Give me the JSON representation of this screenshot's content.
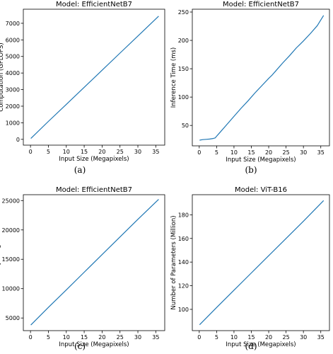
{
  "chart_data": [
    {
      "type": "line",
      "title": "Model: EfficientNetB7",
      "xlabel": "Input Size (Megapixels)",
      "ylabel": "Computation (GFLOPS)",
      "caption": "(a)",
      "xlim": [
        -2,
        37.5
      ],
      "ylim": [
        -350,
        7850
      ],
      "xticks": [
        0,
        5,
        10,
        15,
        20,
        25,
        30,
        35
      ],
      "yticks": [
        0,
        1000,
        2000,
        3000,
        4000,
        5000,
        6000,
        7000
      ],
      "grid": false,
      "series": [
        {
          "x": [
            0.1,
            5,
            10,
            15,
            20,
            25,
            30,
            35.8
          ],
          "y": [
            50,
            1080,
            2110,
            3140,
            4170,
            5200,
            6230,
            7430
          ]
        }
      ]
    },
    {
      "type": "line",
      "title": "Model: EfficientNetB7",
      "xlabel": "Input Size (Megapixels)",
      "ylabel": "Inference Time (ms)",
      "caption": "(b)",
      "xlim": [
        -2,
        37.5
      ],
      "ylim": [
        14,
        255
      ],
      "xticks": [
        0,
        5,
        10,
        15,
        20,
        25,
        30,
        35
      ],
      "yticks": [
        50,
        100,
        150,
        200,
        250
      ],
      "grid": false,
      "series": [
        {
          "x": [
            0.1,
            1,
            2,
            3,
            4,
            4.6,
            5,
            6,
            8,
            10,
            12,
            14,
            16,
            18,
            20,
            21,
            22,
            24,
            26,
            28,
            29,
            30,
            32,
            34,
            35.8
          ],
          "y": [
            24,
            25,
            25.5,
            26,
            27,
            28,
            31,
            38,
            52,
            66,
            80,
            93,
            107,
            120,
            133,
            139,
            146,
            160,
            173,
            187,
            193,
            199,
            212,
            226,
            244
          ]
        }
      ]
    },
    {
      "type": "line",
      "title": "Model: EfficientNetB7",
      "xlabel": "Input Size (Megapixels)",
      "ylabel": "GPU Memory Usage (MB)",
      "caption": "(c)",
      "xlim": [
        -2,
        37.5
      ],
      "ylim": [
        2850,
        26000
      ],
      "xticks": [
        0,
        5,
        10,
        15,
        20,
        25,
        30,
        35
      ],
      "yticks": [
        5000,
        10000,
        15000,
        20000,
        25000
      ],
      "grid": false,
      "series": [
        {
          "x": [
            0.1,
            5,
            10,
            15,
            20,
            25,
            30,
            35.8
          ],
          "y": [
            3800,
            6800,
            9800,
            12800,
            15800,
            18800,
            21800,
            25200
          ]
        }
      ]
    },
    {
      "type": "line",
      "title": "Model: ViT-B16",
      "xlabel": "Input Size (Megapixels)",
      "ylabel": "Number of Parameters (Million)",
      "caption": "(d)",
      "xlim": [
        -2,
        37.5
      ],
      "ylim": [
        82,
        197
      ],
      "xticks": [
        0,
        5,
        10,
        15,
        20,
        25,
        30,
        35
      ],
      "yticks": [
        100,
        120,
        140,
        160,
        180
      ],
      "grid": false,
      "series": [
        {
          "x": [
            0.1,
            5,
            10,
            15,
            20,
            25,
            30,
            35.8
          ],
          "y": [
            87,
            101.6,
            116.2,
            130.8,
            145.4,
            160,
            174.6,
            192
          ]
        }
      ]
    }
  ]
}
